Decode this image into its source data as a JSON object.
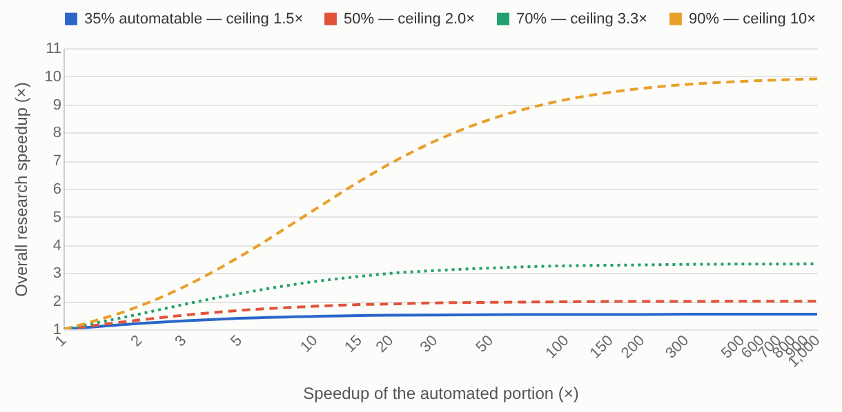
{
  "chart_data": {
    "type": "line",
    "xlabel": "Speedup of the automated portion (×)",
    "ylabel": "Overall research speedup (×)",
    "x": [
      1,
      2,
      3,
      5,
      10,
      15,
      20,
      30,
      50,
      100,
      150,
      200,
      300,
      500,
      600,
      700,
      800,
      900,
      1000
    ],
    "series": [
      {
        "name": "35% automatable — ceiling 1.5×",
        "color": "#2a66c9",
        "line_style": "solid",
        "values": [
          1,
          1.21,
          1.3,
          1.39,
          1.46,
          1.49,
          1.5,
          1.51,
          1.52,
          1.53,
          1.53,
          1.53,
          1.54,
          1.54,
          1.54,
          1.54,
          1.54,
          1.54,
          1.54
        ]
      },
      {
        "name": "50% — ceiling 2.0×",
        "color": "#e0533a",
        "line_style": "dashed",
        "values": [
          1,
          1.33,
          1.5,
          1.67,
          1.82,
          1.88,
          1.9,
          1.94,
          1.96,
          1.98,
          1.99,
          1.99,
          1.99,
          2,
          2,
          2,
          2,
          2,
          2
        ]
      },
      {
        "name": "70% — ceiling 3.3×",
        "color": "#23a06e",
        "line_style": "dotted",
        "values": [
          1,
          1.54,
          1.88,
          2.27,
          2.7,
          2.88,
          2.99,
          3.09,
          3.18,
          3.26,
          3.28,
          3.29,
          3.31,
          3.32,
          3.32,
          3.32,
          3.32,
          3.33,
          3.33
        ]
      },
      {
        "name": "90% — ceiling 10×",
        "color": "#e8a02a",
        "line_style": "dashed",
        "values": [
          1,
          1.82,
          2.5,
          3.57,
          5.26,
          6.25,
          6.9,
          7.69,
          8.47,
          9.17,
          9.43,
          9.57,
          9.71,
          9.82,
          9.85,
          9.87,
          9.89,
          9.9,
          9.91
        ]
      }
    ],
    "log": "x",
    "xlim": [
      1,
      1000
    ],
    "xticks": [
      1,
      2,
      3,
      5,
      10,
      15,
      20,
      30,
      50,
      100,
      150,
      200,
      300,
      500,
      600,
      700,
      800,
      900,
      {
        "value": 1000,
        "label": "1,000"
      }
    ],
    "ylim": [
      1,
      11
    ],
    "yticks": [
      1,
      2,
      3,
      4,
      5,
      6,
      7,
      8,
      9,
      10,
      11
    ],
    "grid": "y",
    "legend": "top",
    "marker": "none"
  }
}
